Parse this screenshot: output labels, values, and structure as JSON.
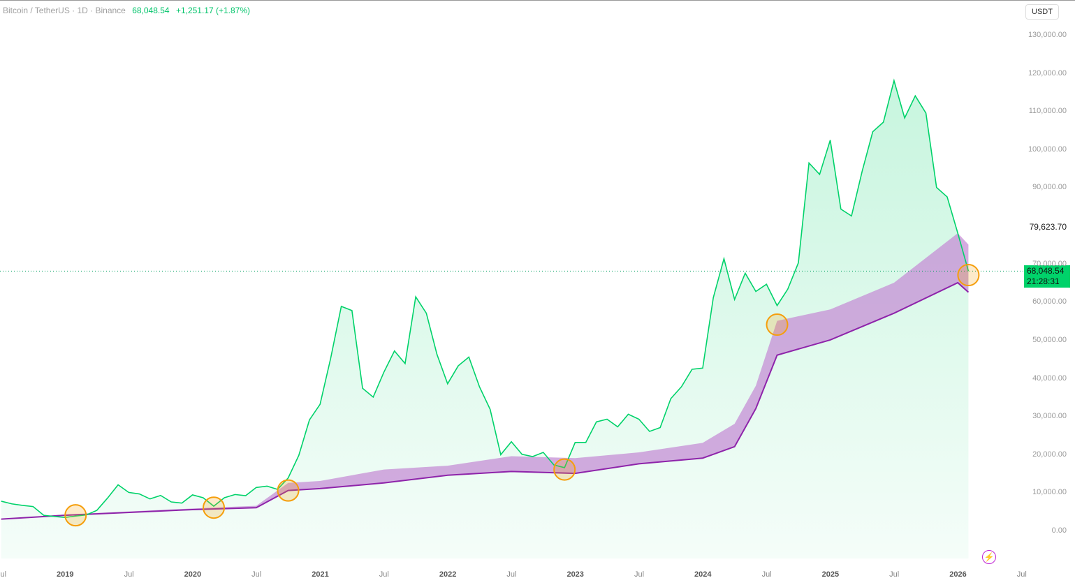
{
  "header": {
    "symbol": "Bitcoin / TetherUS · 1D · Binance",
    "price": "68,048.54",
    "change": "+1,251.17 (+1.87%)"
  },
  "currency_button": "USDT",
  "price_label": {
    "price": "68,048.54",
    "countdown": "21:28:31"
  },
  "high_label": "79,623.70",
  "colors": {
    "price_line": "#00d26a",
    "band": "#c68fd6",
    "lower_line": "#8e24aa",
    "circle": "#f59e0b"
  },
  "chart_data": {
    "type": "line",
    "y_ticks": [
      "0.00",
      "10,000.00",
      "20,000.00",
      "30,000.00",
      "40,000.00",
      "50,000.00",
      "60,000.00",
      "70,000.00",
      "90,000.00",
      "100,000.00",
      "110,000.00",
      "120,000.00",
      "130,000.00"
    ],
    "x_ticks": [
      "Jul",
      "2019",
      "Jul",
      "2020",
      "Jul",
      "2021",
      "Jul",
      "2022",
      "Jul",
      "2023",
      "Jul",
      "2024",
      "Jul",
      "2025",
      "Jul",
      "2026",
      "Jul"
    ],
    "ylim": [
      0,
      130000
    ],
    "price": {
      "dates": [
        "2018-07",
        "2018-08",
        "2018-09",
        "2018-10",
        "2018-11",
        "2018-12",
        "2019-01",
        "2019-02",
        "2019-03",
        "2019-04",
        "2019-05",
        "2019-06",
        "2019-07",
        "2019-08",
        "2019-09",
        "2019-10",
        "2019-11",
        "2019-12",
        "2020-01",
        "2020-02",
        "2020-03",
        "2020-04",
        "2020-05",
        "2020-06",
        "2020-07",
        "2020-08",
        "2020-09",
        "2020-10",
        "2020-11",
        "2020-12",
        "2021-01",
        "2021-02",
        "2021-03",
        "2021-04",
        "2021-05",
        "2021-06",
        "2021-07",
        "2021-08",
        "2021-09",
        "2021-10",
        "2021-11",
        "2021-12",
        "2022-01",
        "2022-02",
        "2022-03",
        "2022-04",
        "2022-05",
        "2022-06",
        "2022-07",
        "2022-08",
        "2022-09",
        "2022-10",
        "2022-11",
        "2022-12",
        "2023-01",
        "2023-02",
        "2023-03",
        "2023-04",
        "2023-05",
        "2023-06",
        "2023-07",
        "2023-08",
        "2023-09",
        "2023-10",
        "2023-11",
        "2023-12",
        "2024-01",
        "2024-02",
        "2024-03",
        "2024-04",
        "2024-05",
        "2024-06",
        "2024-07",
        "2024-08",
        "2024-09",
        "2024-10",
        "2024-11",
        "2024-12",
        "2025-01",
        "2025-02",
        "2025-03",
        "2025-04",
        "2025-05",
        "2025-06",
        "2025-07",
        "2025-08",
        "2025-09",
        "2025-10",
        "2025-11",
        "2025-12",
        "2026-01",
        "2026-02"
      ],
      "values": [
        7700,
        7000,
        6600,
        6300,
        4000,
        3700,
        3450,
        3800,
        4100,
        5300,
        8500,
        12000,
        10000,
        9600,
        8300,
        9200,
        7500,
        7200,
        9350,
        8600,
        6400,
        8600,
        9450,
        9150,
        11300,
        11650,
        10800,
        13800,
        19700,
        29000,
        33100,
        45200,
        58800,
        57700,
        37300,
        35000,
        41500,
        47100,
        43800,
        61300,
        57000,
        46200,
        38500,
        43200,
        45500,
        37700,
        31800,
        19900,
        23300,
        20000,
        19400,
        20500,
        17200,
        16500,
        23100,
        23100,
        28500,
        29200,
        27200,
        30500,
        29200,
        26000,
        27000,
        34600,
        37700,
        42300,
        42600,
        61100,
        71300,
        60600,
        67500,
        62700,
        64600,
        59000,
        63300,
        70200,
        96400,
        93400,
        102400,
        84300,
        82500,
        94200,
        104600,
        107100,
        118000,
        108200,
        114000,
        109500,
        90000,
        87500,
        78000,
        68048
      ]
    },
    "band_upper": {
      "dates": [
        "2018-07",
        "2019-01",
        "2020-01",
        "2020-07",
        "2020-10",
        "2021-01",
        "2021-07",
        "2022-01",
        "2022-07",
        "2023-01",
        "2023-07",
        "2024-01",
        "2024-04",
        "2024-06",
        "2024-08",
        "2025-01",
        "2025-07",
        "2026-01",
        "2026-02"
      ],
      "values": [
        3000,
        4200,
        5800,
        6500,
        12500,
        13000,
        16000,
        17000,
        19500,
        19000,
        20500,
        23000,
        28000,
        38000,
        55000,
        58000,
        65000,
        78000,
        75000
      ]
    },
    "band_lower": {
      "dates": [
        "2018-07",
        "2019-01",
        "2020-01",
        "2020-07",
        "2020-10",
        "2021-01",
        "2021-07",
        "2022-01",
        "2022-07",
        "2023-01",
        "2023-07",
        "2024-01",
        "2024-04",
        "2024-06",
        "2024-08",
        "2025-01",
        "2025-07",
        "2026-01",
        "2026-02"
      ],
      "values": [
        3000,
        4000,
        5500,
        6000,
        10500,
        11000,
        12500,
        14500,
        15500,
        15000,
        17500,
        19000,
        22000,
        32000,
        46000,
        50000,
        57000,
        65000,
        62500
      ]
    },
    "markers": {
      "dates": [
        "2019-02",
        "2020-03",
        "2020-10",
        "2022-12",
        "2024-08",
        "2026-02"
      ],
      "values": [
        4000,
        6000,
        10500,
        16000,
        54000,
        67000
      ]
    }
  }
}
